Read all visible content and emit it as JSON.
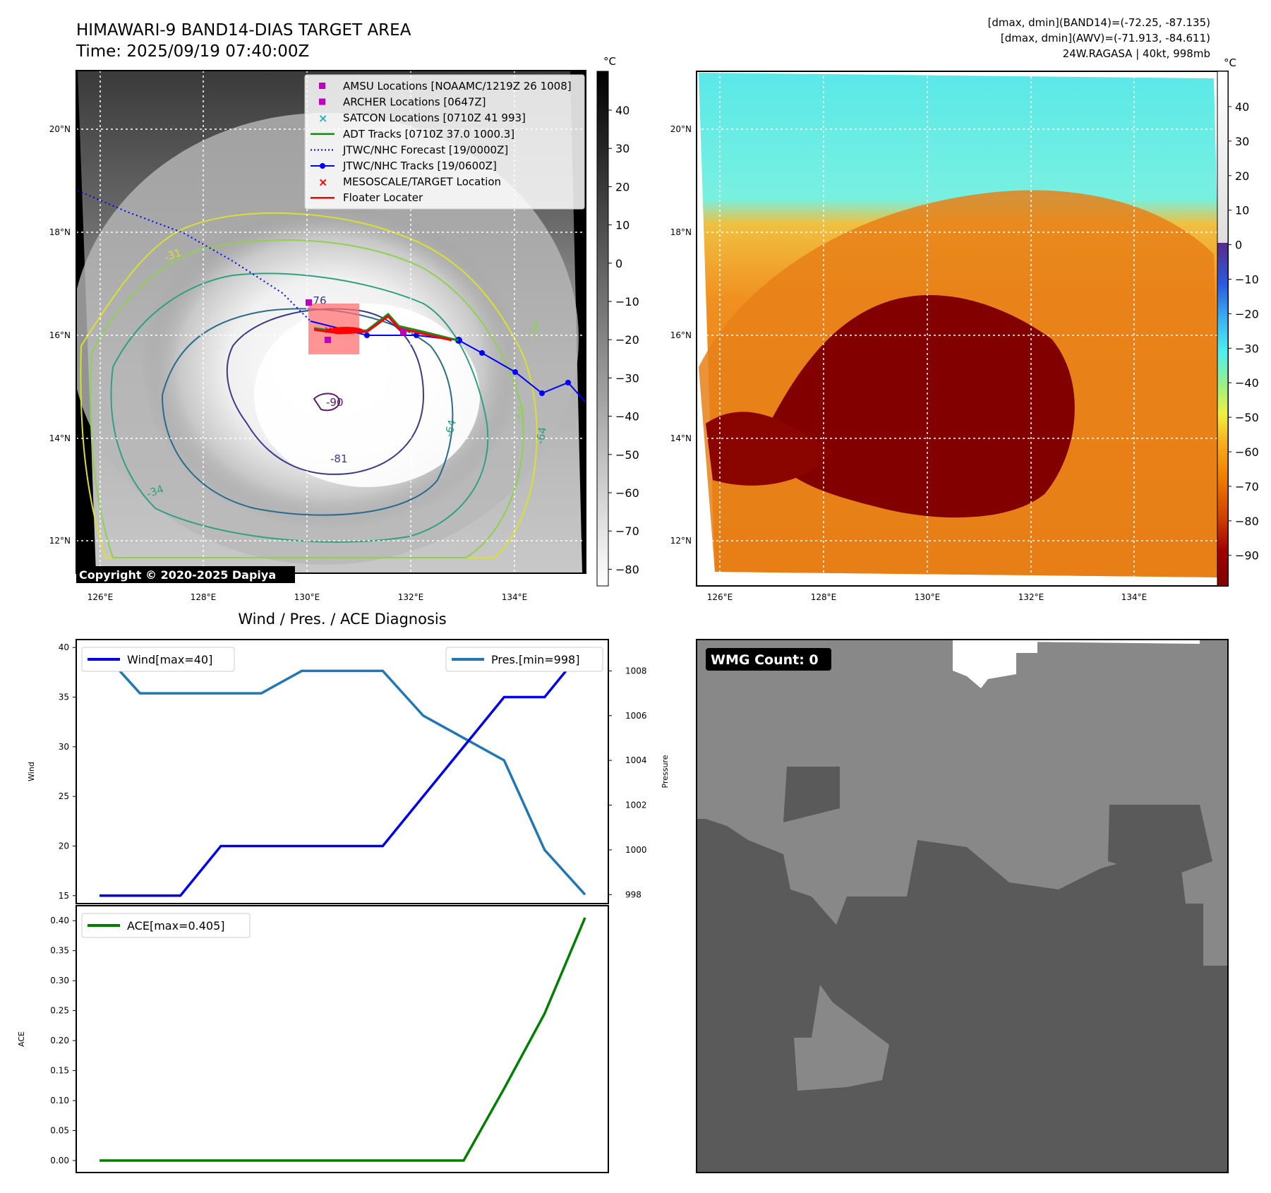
{
  "header": {
    "title_line1": "HIMAWARI-9 BAND14-DIAS TARGET AREA",
    "title_line2": "Time: 2025/09/19 07:40:00Z",
    "info_line1": "[dmax, dmin](BAND14)=(-72.25, -87.135)",
    "info_line2": "[dmax, dmin](AWV)=(-71.913, -84.611)",
    "info_line3": "24W.RAGASA | 40kt, 998mb"
  },
  "copyright": "Copyright © 2020-2025 Dapiya",
  "units_label": "°C",
  "map_axes": {
    "lat_labels": [
      "20°N",
      "18°N",
      "16°N",
      "14°N",
      "12°N"
    ],
    "lon_labels": [
      "126°E",
      "128°E",
      "130°E",
      "132°E",
      "134°E"
    ]
  },
  "legend": [
    {
      "label": "AMSU Locations [NOAAMC/1219Z 26 1008]",
      "marker": "square",
      "color": "#c000c0"
    },
    {
      "label": "ARCHER Locations [0647Z]",
      "marker": "square",
      "color": "#c000c0"
    },
    {
      "label": "SATCON Locations [0710Z 41 993]",
      "marker": "x",
      "color": "#20b0c0"
    },
    {
      "label": "ADT Tracks [0710Z 37.0 1000.3]",
      "marker": "line",
      "color": "#1a8a1a"
    },
    {
      "label": "JTWC/NHC Forecast [19/0000Z]",
      "marker": "dotted",
      "color": "#0000ff"
    },
    {
      "label": "JTWC/NHC Tracks [19/0600Z]",
      "marker": "line-dot",
      "color": "#0000ff"
    },
    {
      "label": "MESOSCALE/TARGET Location",
      "marker": "x",
      "color": "#ff0000"
    },
    {
      "label": "Floater Locater",
      "marker": "line",
      "color": "#ff0000"
    }
  ],
  "contour_labels": [
    "-76",
    "-90",
    "-81",
    "-64",
    "-54",
    "-64",
    "-54",
    "-31",
    "-34"
  ],
  "gray_colorbar_ticks": [
    "40",
    "30",
    "20",
    "10",
    "0",
    "−10",
    "−20",
    "−30",
    "−40",
    "−50",
    "−60",
    "−70",
    "−80"
  ],
  "color_colorbar_ticks": [
    "40",
    "30",
    "20",
    "10",
    "0",
    "−10",
    "−20",
    "−30",
    "−40",
    "−50",
    "−60",
    "−70",
    "−80",
    "−90"
  ],
  "wmg_label": "WMG Count: 0",
  "chart_data": [
    {
      "type": "line",
      "title": "Wind / Pres. / ACE Diagnosis",
      "x": [
        0,
        1,
        2,
        3,
        4,
        5,
        6,
        7,
        8,
        9,
        10,
        11,
        12
      ],
      "left_ylabel": "Wind",
      "right_ylabel": "Pressure",
      "left_ylim": [
        14.2,
        40.8
      ],
      "right_ylim": [
        997.6,
        1009.4
      ],
      "left_yticks": [
        "40",
        "35",
        "30",
        "25",
        "20",
        "15"
      ],
      "right_yticks": [
        "1008",
        "1006",
        "1004",
        "1002",
        "1000",
        "998"
      ],
      "series": [
        {
          "name": "Wind[max=40]",
          "axis": "left",
          "color": "#0000ee",
          "values": [
            15,
            15,
            15,
            20,
            20,
            20,
            20,
            20,
            25,
            30,
            35,
            35,
            40
          ]
        },
        {
          "name": "Pres.[min=998]",
          "axis": "right",
          "color": "#1f77b4",
          "values": [
            1009,
            1007,
            1007,
            1007,
            1007,
            1008,
            1008,
            1008,
            1006,
            1005,
            1004,
            1000,
            998
          ]
        }
      ]
    },
    {
      "type": "line",
      "ylabel": "ACE",
      "x": [
        0,
        1,
        2,
        3,
        4,
        5,
        6,
        7,
        8,
        9,
        10,
        11,
        12
      ],
      "ylim": [
        -0.02,
        0.425
      ],
      "yticks": [
        "0.40",
        "0.35",
        "0.30",
        "0.25",
        "0.20",
        "0.15",
        "0.10",
        "0.05",
        "0.00"
      ],
      "series": [
        {
          "name": "ACE[max=0.405]",
          "color": "#008000",
          "values": [
            0,
            0,
            0,
            0,
            0,
            0,
            0,
            0,
            0,
            0,
            0.12,
            0.245,
            0.405
          ]
        }
      ]
    }
  ]
}
